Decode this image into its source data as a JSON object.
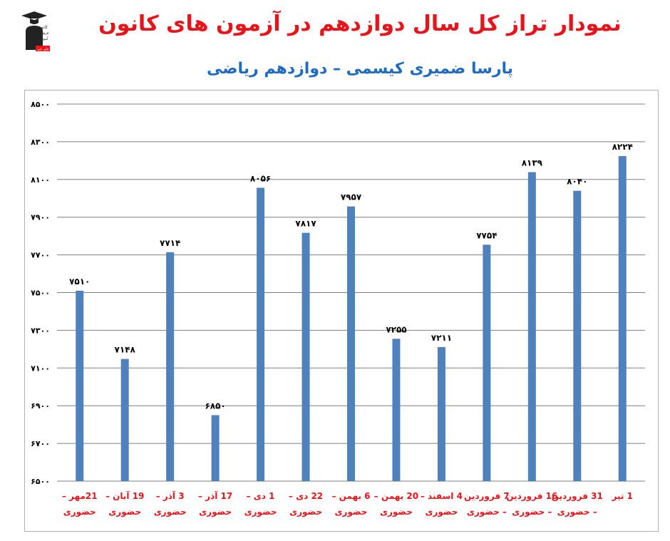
{
  "header": {
    "title": "نمودار تراز کل سال دوازدهم در آزمون های کانون",
    "subtitle": "پارسا ضمیری کیسمی – دوازدهم ریاضی"
  },
  "logo": {
    "lines": [
      "کانون",
      "فرهنگی",
      "آموزش",
      "قلم چی"
    ]
  },
  "colors": {
    "title": "#e8141b",
    "subtitle": "#1f6bc2",
    "bar": "#4f81bd",
    "category_label": "#e8141b",
    "tick_label": "#000000",
    "gridline": "#7f7f7f"
  },
  "chart_data": {
    "type": "bar",
    "ylim": [
      6500,
      8500
    ],
    "yticks": [
      6500,
      6700,
      6900,
      7100,
      7300,
      7500,
      7700,
      7900,
      8100,
      8300,
      8500
    ],
    "ytick_labels": [
      "۶۵۰۰",
      "۶۷۰۰",
      "۶۹۰۰",
      "۷۱۰۰",
      "۷۳۰۰",
      "۷۵۰۰",
      "۷۷۰۰",
      "۷۹۰۰",
      "۸۱۰۰",
      "۸۳۰۰",
      "۸۵۰۰"
    ],
    "grid": true,
    "categories": [
      [
        "21مهر –",
        "حضوری"
      ],
      [
        "19 آبان –",
        "حضوری"
      ],
      [
        "3 آذر –",
        "حضوری"
      ],
      [
        "17 آذر –",
        "حضوری"
      ],
      [
        "1 دی –",
        "حضوری"
      ],
      [
        "22 دی –",
        "حضوری"
      ],
      [
        "6 بهمن –",
        "حضوری"
      ],
      [
        "20 بهمن –",
        "حضوری"
      ],
      [
        "4 اسفند –",
        "حضوری"
      ],
      [
        "7 فروردین",
        "– حضوری"
      ],
      [
        "16 فروردین",
        "– حضوری"
      ],
      [
        "31 فروردین",
        "– حضوری"
      ],
      [
        "1 تیر",
        ""
      ]
    ],
    "values": [
      7510,
      7148,
      7714,
      6850,
      8056,
      7817,
      7957,
      7255,
      7211,
      7754,
      8139,
      8040,
      8224
    ],
    "data_labels": [
      "۷۵۱۰",
      "۷۱۴۸",
      "۷۷۱۴",
      "۶۸۵۰",
      "۸۰۵۶",
      "۷۸۱۷",
      "۷۹۵۷",
      "۷۲۵۵",
      "۷۲۱۱",
      "۷۷۵۴",
      "۸۱۳۹",
      "۸۰۴۰",
      "۸۲۲۴"
    ]
  }
}
